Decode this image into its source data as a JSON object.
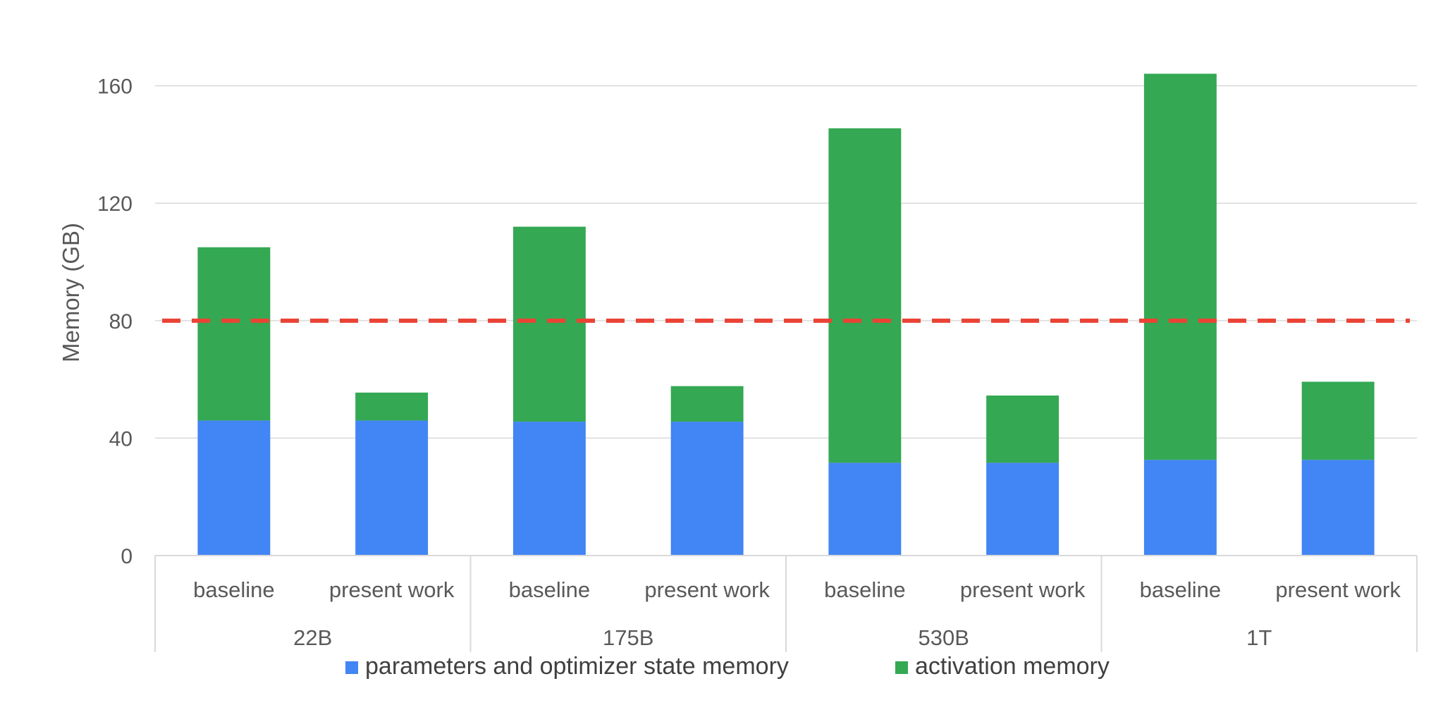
{
  "chart_data": {
    "type": "bar",
    "stacked": true,
    "title": "",
    "xlabel": "",
    "ylabel": "Memory (GB)",
    "ylim": [
      0,
      170
    ],
    "yticks": [
      0,
      40,
      80,
      120,
      160
    ],
    "grid": true,
    "legend_position": "bottom",
    "groups": [
      "22B",
      "175B",
      "530B",
      "1T"
    ],
    "categories": [
      "baseline",
      "present work",
      "baseline",
      "present work",
      "baseline",
      "present work",
      "baseline",
      "present work"
    ],
    "category_group": [
      0,
      0,
      1,
      1,
      2,
      2,
      3,
      3
    ],
    "series": [
      {
        "name": "parameters and optimizer state memory",
        "color": "#4285f4",
        "values": [
          46,
          46,
          45.6,
          45.6,
          31.6,
          31.6,
          32.6,
          32.6
        ]
      },
      {
        "name": "activation memory",
        "color": "#34a853",
        "values": [
          59,
          9.5,
          66.4,
          12.1,
          113.9,
          22.9,
          131.5,
          26.6
        ]
      }
    ],
    "reference_line": {
      "value": 80,
      "color": "#ea4335",
      "style": "dashed"
    },
    "gridline_color": "#d9d9d9",
    "axis_color": "#d9d9d9"
  }
}
